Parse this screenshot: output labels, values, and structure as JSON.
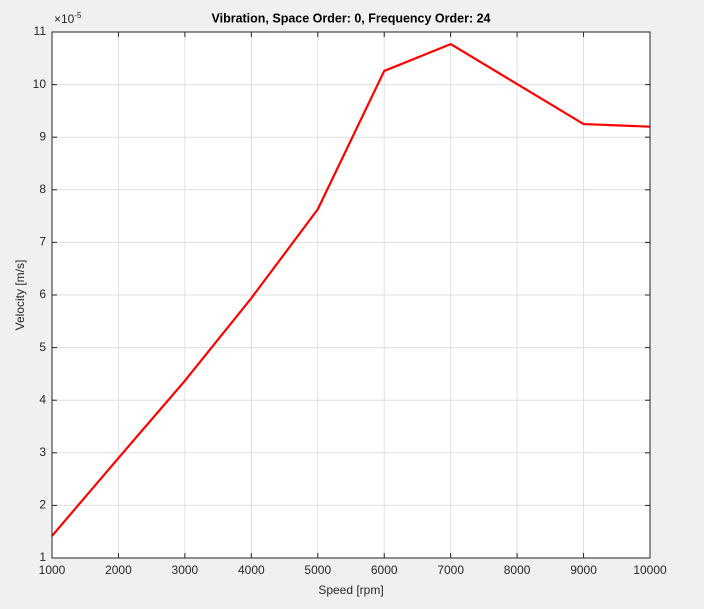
{
  "chart_data": {
    "type": "line",
    "title": "Vibration, Space Order: 0, Frequency Order: 24",
    "x_label": "Speed [rpm]",
    "y_label": "Velocity [m/s]",
    "y_multiplier": {
      "base": "×10",
      "exponent": "-5"
    },
    "x": [
      1000,
      2000,
      3000,
      4000,
      5000,
      6000,
      7000,
      8000,
      9000,
      10000
    ],
    "values": [
      1.42,
      2.9,
      4.37,
      5.94,
      7.63,
      10.26,
      10.77,
      10.01,
      9.25,
      9.2
    ],
    "color": "#ff0000",
    "xlim": [
      1000,
      10000
    ],
    "xticks": [
      1000,
      2000,
      3000,
      4000,
      5000,
      6000,
      7000,
      8000,
      9000,
      10000
    ],
    "ylim": [
      1,
      11
    ],
    "yticks": [
      1,
      2,
      3,
      4,
      5,
      6,
      7,
      8,
      9,
      10,
      11
    ],
    "grid": true
  }
}
